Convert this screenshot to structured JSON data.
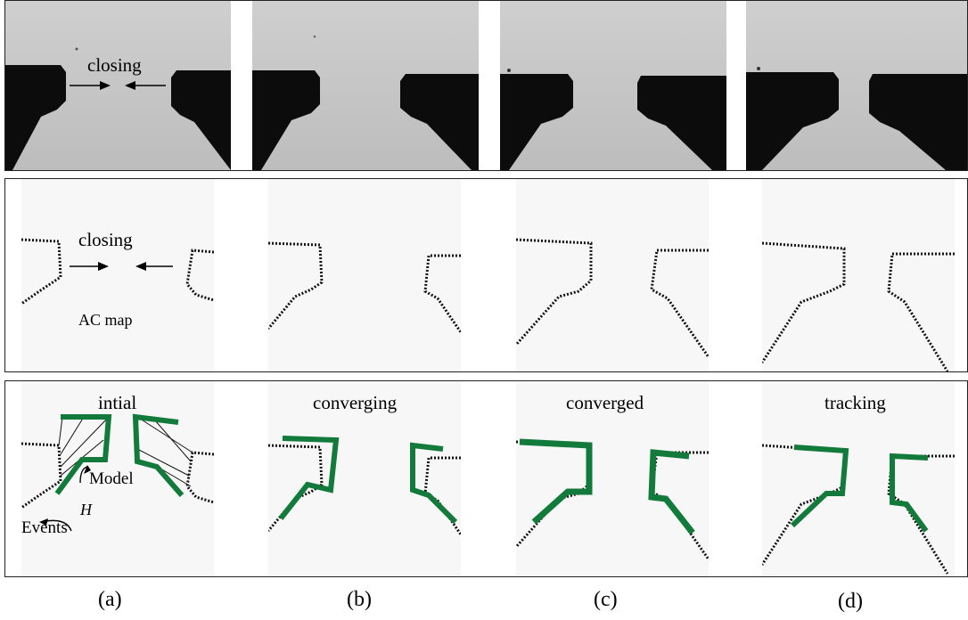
{
  "rows": {
    "row1": {
      "label": "closing"
    },
    "row2": {
      "label": "closing",
      "map_label": "AC map"
    },
    "row3": {
      "stages": [
        "intial",
        "converging",
        "converged",
        "tracking"
      ],
      "model_label": "Model",
      "h_label": "H",
      "events_label": "Events"
    }
  },
  "captions": [
    "(a)",
    "(b)",
    "(c)",
    "(d)"
  ],
  "colors": {
    "model": "#127a3a",
    "edges": "#101010",
    "photo_bg": "#c8c8c8",
    "map_bg": "#f7f7f7",
    "frame": "#4a4ac8"
  }
}
